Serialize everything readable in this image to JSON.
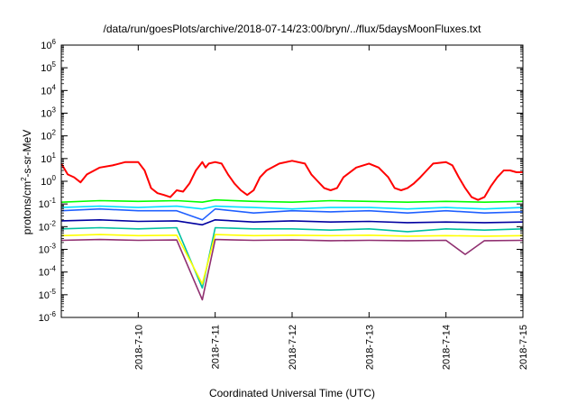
{
  "chart_data": {
    "type": "line",
    "title": "/data/run/goesPlots/archive/2018-07-14/23:00/bryn/../flux/5daysMoonFluxes.txt",
    "xlabel": "Coordinated Universal Time (UTC)",
    "ylabel_parts": [
      "protons/cm",
      "2",
      "-s-sr-MeV"
    ],
    "x_range": [
      "2018-07-09T00:00",
      "2018-07-15T00:00"
    ],
    "x_ticks": [
      "2018-7-10",
      "2018-7-11",
      "2018-7-12",
      "2018-7-13",
      "2018-7-14",
      "2018-7-15"
    ],
    "y_scale": "log",
    "y_range": [
      1e-06,
      1000000.0
    ],
    "y_ticks": [
      {
        "base": "10",
        "exp": "-6"
      },
      {
        "base": "10",
        "exp": "-5"
      },
      {
        "base": "10",
        "exp": "-4"
      },
      {
        "base": "10",
        "exp": "-3"
      },
      {
        "base": "10",
        "exp": "-2"
      },
      {
        "base": "10",
        "exp": "-1"
      },
      {
        "base": "10",
        "exp": "0"
      },
      {
        "base": "10",
        "exp": "1"
      },
      {
        "base": "10",
        "exp": "2"
      },
      {
        "base": "10",
        "exp": "3"
      },
      {
        "base": "10",
        "exp": "4"
      },
      {
        "base": "10",
        "exp": "5"
      },
      {
        "base": "10",
        "exp": "6"
      }
    ],
    "grid": false,
    "legend": "none",
    "series": [
      {
        "color": "#ff0000",
        "points": [
          [
            "2018-07-09T00:00",
            6
          ],
          [
            "2018-07-09T02:00",
            2
          ],
          [
            "2018-07-09T04:00",
            1.5
          ],
          [
            "2018-07-09T06:00",
            0.9
          ],
          [
            "2018-07-09T08:00",
            2
          ],
          [
            "2018-07-09T12:00",
            4
          ],
          [
            "2018-07-09T16:00",
            5
          ],
          [
            "2018-07-09T20:00",
            7
          ],
          [
            "2018-07-10T00:00",
            7
          ],
          [
            "2018-07-10T02:00",
            3
          ],
          [
            "2018-07-10T04:00",
            0.5
          ],
          [
            "2018-07-10T06:00",
            0.3
          ],
          [
            "2018-07-10T08:00",
            0.25
          ],
          [
            "2018-07-10T10:00",
            0.2
          ],
          [
            "2018-07-10T12:00",
            0.4
          ],
          [
            "2018-07-10T14:00",
            0.35
          ],
          [
            "2018-07-10T16:00",
            0.8
          ],
          [
            "2018-07-10T18:00",
            3
          ],
          [
            "2018-07-10T20:00",
            7
          ],
          [
            "2018-07-10T21:00",
            4
          ],
          [
            "2018-07-10T22:00",
            6
          ],
          [
            "2018-07-11T00:00",
            7
          ],
          [
            "2018-07-11T02:00",
            6
          ],
          [
            "2018-07-11T04:00",
            2
          ],
          [
            "2018-07-11T06:00",
            0.8
          ],
          [
            "2018-07-11T08:00",
            0.4
          ],
          [
            "2018-07-11T10:00",
            0.25
          ],
          [
            "2018-07-11T12:00",
            0.4
          ],
          [
            "2018-07-11T14:00",
            1.5
          ],
          [
            "2018-07-11T16:00",
            3
          ],
          [
            "2018-07-11T20:00",
            6
          ],
          [
            "2018-07-12T00:00",
            8
          ],
          [
            "2018-07-12T04:00",
            6
          ],
          [
            "2018-07-12T06:00",
            2
          ],
          [
            "2018-07-12T08:00",
            1
          ],
          [
            "2018-07-12T10:00",
            0.5
          ],
          [
            "2018-07-12T12:00",
            0.4
          ],
          [
            "2018-07-12T14:00",
            0.5
          ],
          [
            "2018-07-12T16:00",
            1.5
          ],
          [
            "2018-07-12T20:00",
            4
          ],
          [
            "2018-07-13T00:00",
            6
          ],
          [
            "2018-07-13T03:00",
            4
          ],
          [
            "2018-07-13T06:00",
            1.5
          ],
          [
            "2018-07-13T08:00",
            0.5
          ],
          [
            "2018-07-13T10:00",
            0.4
          ],
          [
            "2018-07-13T12:00",
            0.5
          ],
          [
            "2018-07-13T14:00",
            0.8
          ],
          [
            "2018-07-13T16:00",
            1.5
          ],
          [
            "2018-07-13T18:00",
            3
          ],
          [
            "2018-07-13T20:00",
            6
          ],
          [
            "2018-07-14T00:00",
            7
          ],
          [
            "2018-07-14T02:00",
            5
          ],
          [
            "2018-07-14T04:00",
            1.5
          ],
          [
            "2018-07-14T06:00",
            0.5
          ],
          [
            "2018-07-14T08:00",
            0.2
          ],
          [
            "2018-07-14T10:00",
            0.15
          ],
          [
            "2018-07-14T12:00",
            0.2
          ],
          [
            "2018-07-14T14:00",
            0.6
          ],
          [
            "2018-07-14T16:00",
            1.5
          ],
          [
            "2018-07-14T18:00",
            3
          ],
          [
            "2018-07-14T20:00",
            3
          ],
          [
            "2018-07-14T22:00",
            2.5
          ],
          [
            "2018-07-15T00:00",
            2.5
          ]
        ]
      },
      {
        "color": "#00ff00",
        "points": [
          [
            "2018-07-09T00:00",
            0.12
          ],
          [
            "2018-07-09T12:00",
            0.14
          ],
          [
            "2018-07-10T00:00",
            0.13
          ],
          [
            "2018-07-10T12:00",
            0.14
          ],
          [
            "2018-07-10T20:00",
            0.12
          ],
          [
            "2018-07-11T00:00",
            0.15
          ],
          [
            "2018-07-11T12:00",
            0.13
          ],
          [
            "2018-07-12T00:00",
            0.12
          ],
          [
            "2018-07-12T12:00",
            0.14
          ],
          [
            "2018-07-13T00:00",
            0.13
          ],
          [
            "2018-07-13T12:00",
            0.12
          ],
          [
            "2018-07-14T00:00",
            0.13
          ],
          [
            "2018-07-14T12:00",
            0.12
          ],
          [
            "2018-07-15T00:00",
            0.13
          ]
        ]
      },
      {
        "color": "#00e0ff",
        "points": [
          [
            "2018-07-09T00:00",
            0.07
          ],
          [
            "2018-07-09T12:00",
            0.08
          ],
          [
            "2018-07-10T00:00",
            0.07
          ],
          [
            "2018-07-10T12:00",
            0.08
          ],
          [
            "2018-07-10T20:00",
            0.06
          ],
          [
            "2018-07-11T00:00",
            0.08
          ],
          [
            "2018-07-11T12:00",
            0.07
          ],
          [
            "2018-07-12T00:00",
            0.06
          ],
          [
            "2018-07-12T12:00",
            0.07
          ],
          [
            "2018-07-13T00:00",
            0.07
          ],
          [
            "2018-07-13T12:00",
            0.06
          ],
          [
            "2018-07-14T00:00",
            0.07
          ],
          [
            "2018-07-14T12:00",
            0.06
          ],
          [
            "2018-07-15T00:00",
            0.07
          ]
        ]
      },
      {
        "color": "#2060ff",
        "points": [
          [
            "2018-07-09T00:00",
            0.05
          ],
          [
            "2018-07-09T12:00",
            0.06
          ],
          [
            "2018-07-10T00:00",
            0.05
          ],
          [
            "2018-07-10T12:00",
            0.05
          ],
          [
            "2018-07-10T20:00",
            0.02
          ],
          [
            "2018-07-11T00:00",
            0.06
          ],
          [
            "2018-07-11T12:00",
            0.04
          ],
          [
            "2018-07-12T00:00",
            0.05
          ],
          [
            "2018-07-12T12:00",
            0.045
          ],
          [
            "2018-07-13T00:00",
            0.05
          ],
          [
            "2018-07-13T12:00",
            0.04
          ],
          [
            "2018-07-14T00:00",
            0.05
          ],
          [
            "2018-07-14T12:00",
            0.04
          ],
          [
            "2018-07-15T00:00",
            0.045
          ]
        ]
      },
      {
        "color": "#0000a0",
        "points": [
          [
            "2018-07-09T00:00",
            0.018
          ],
          [
            "2018-07-09T12:00",
            0.02
          ],
          [
            "2018-07-10T00:00",
            0.017
          ],
          [
            "2018-07-10T12:00",
            0.018
          ],
          [
            "2018-07-10T20:00",
            0.012
          ],
          [
            "2018-07-11T00:00",
            0.02
          ],
          [
            "2018-07-11T12:00",
            0.016
          ],
          [
            "2018-07-12T00:00",
            0.018
          ],
          [
            "2018-07-12T12:00",
            0.016
          ],
          [
            "2018-07-13T00:00",
            0.017
          ],
          [
            "2018-07-13T12:00",
            0.015
          ],
          [
            "2018-07-14T00:00",
            0.016
          ],
          [
            "2018-07-14T12:00",
            0.015
          ],
          [
            "2018-07-15T00:00",
            0.016
          ]
        ]
      },
      {
        "color": "#00c0a0",
        "points": [
          [
            "2018-07-09T00:00",
            0.008
          ],
          [
            "2018-07-09T12:00",
            0.009
          ],
          [
            "2018-07-10T00:00",
            0.008
          ],
          [
            "2018-07-10T12:00",
            0.009
          ],
          [
            "2018-07-10T20:00",
            2e-05
          ],
          [
            "2018-07-11T00:00",
            0.009
          ],
          [
            "2018-07-11T12:00",
            0.008
          ],
          [
            "2018-07-12T00:00",
            0.008
          ],
          [
            "2018-07-12T12:00",
            0.007
          ],
          [
            "2018-07-13T00:00",
            0.008
          ],
          [
            "2018-07-13T12:00",
            0.006
          ],
          [
            "2018-07-14T00:00",
            0.008
          ],
          [
            "2018-07-14T12:00",
            0.007
          ],
          [
            "2018-07-15T00:00",
            0.008
          ]
        ]
      },
      {
        "color": "#ffff00",
        "points": [
          [
            "2018-07-09T00:00",
            0.004
          ],
          [
            "2018-07-09T12:00",
            0.0045
          ],
          [
            "2018-07-10T00:00",
            0.004
          ],
          [
            "2018-07-10T12:00",
            0.0042
          ],
          [
            "2018-07-10T20:00",
            3e-05
          ],
          [
            "2018-07-11T00:00",
            0.0045
          ],
          [
            "2018-07-11T12:00",
            0.004
          ],
          [
            "2018-07-12T00:00",
            0.0042
          ],
          [
            "2018-07-12T12:00",
            0.004
          ],
          [
            "2018-07-13T00:00",
            0.0042
          ],
          [
            "2018-07-13T12:00",
            0.0038
          ],
          [
            "2018-07-14T00:00",
            0.004
          ],
          [
            "2018-07-14T12:00",
            0.0038
          ],
          [
            "2018-07-15T00:00",
            0.004
          ]
        ]
      },
      {
        "color": "#903070",
        "points": [
          [
            "2018-07-09T00:00",
            0.0025
          ],
          [
            "2018-07-09T12:00",
            0.0027
          ],
          [
            "2018-07-10T00:00",
            0.0025
          ],
          [
            "2018-07-10T12:00",
            0.0026
          ],
          [
            "2018-07-10T20:00",
            6e-06
          ],
          [
            "2018-07-11T00:00",
            0.0027
          ],
          [
            "2018-07-11T12:00",
            0.0025
          ],
          [
            "2018-07-12T00:00",
            0.0026
          ],
          [
            "2018-07-12T12:00",
            0.0024
          ],
          [
            "2018-07-13T00:00",
            0.0025
          ],
          [
            "2018-07-13T12:00",
            0.0024
          ],
          [
            "2018-07-14T00:00",
            0.0025
          ],
          [
            "2018-07-14T06:00",
            0.0006
          ],
          [
            "2018-07-14T12:00",
            0.0024
          ],
          [
            "2018-07-15T00:00",
            0.0025
          ]
        ]
      }
    ]
  }
}
